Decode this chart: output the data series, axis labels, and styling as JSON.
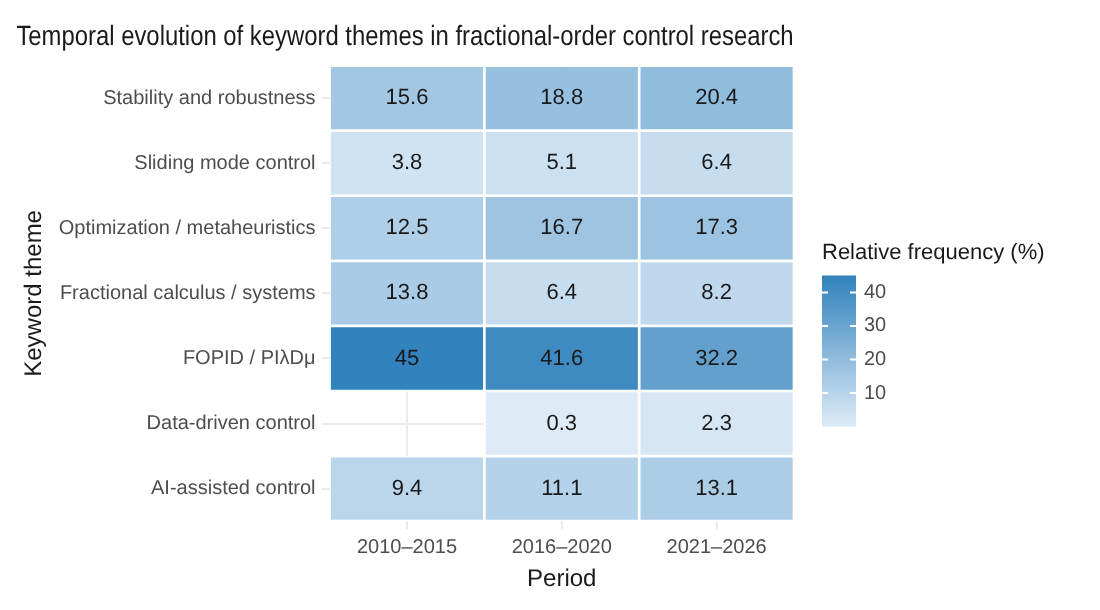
{
  "chart_data": {
    "type": "heatmap",
    "title": "Temporal evolution of keyword themes in fractional-order control research",
    "xlabel": "Period",
    "ylabel": "Keyword theme",
    "legend_title": "Relative frequency (%)",
    "categories": [
      "2010–2015",
      "2016–2020",
      "2021–2026"
    ],
    "y_categories": [
      "Stability and robustness",
      "Sliding mode control",
      "Optimization / metaheuristics",
      "Fractional calculus / systems",
      "FOPID / PIλDμ",
      "Data-driven control",
      "AI-assisted control"
    ],
    "cells": [
      [
        15.6,
        18.8,
        20.4
      ],
      [
        3.8,
        5.1,
        6.4
      ],
      [
        12.5,
        16.7,
        17.3
      ],
      [
        13.8,
        6.4,
        8.2
      ],
      [
        45,
        41.6,
        32.2
      ],
      [
        null,
        0.3,
        2.3
      ],
      [
        9.4,
        11.1,
        13.1
      ]
    ],
    "colors": [
      "#deebf7",
      "#3182bd"
    ],
    "clim": [
      0.3,
      45
    ],
    "cticks": [
      10,
      20,
      30,
      40
    ],
    "data_labels": true,
    "grid": true
  }
}
